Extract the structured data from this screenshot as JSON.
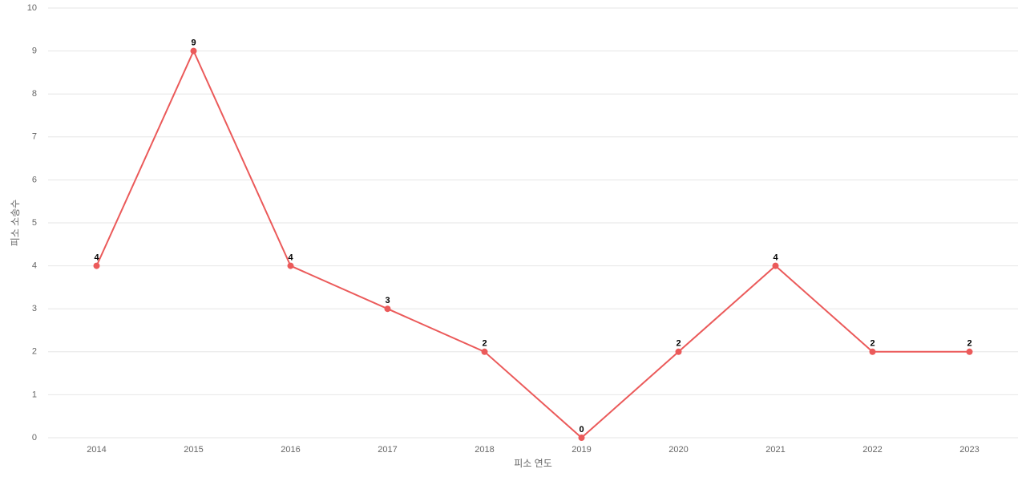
{
  "chart_data": {
    "type": "line",
    "x_label": "피소 연도",
    "y_label": "피소 소송수",
    "categories": [
      "2014",
      "2015",
      "2016",
      "2017",
      "2018",
      "2019",
      "2020",
      "2021",
      "2022",
      "2023"
    ],
    "series": [
      {
        "name": "피소 소송수",
        "color": "#eb5a5a",
        "values": [
          4,
          9,
          4,
          3,
          2,
          0,
          2,
          4,
          2,
          2
        ]
      }
    ],
    "ylim": [
      0,
      10
    ],
    "yticks": [
      0,
      1,
      2,
      3,
      4,
      5,
      6,
      7,
      8,
      9,
      10
    ],
    "grid": true
  }
}
